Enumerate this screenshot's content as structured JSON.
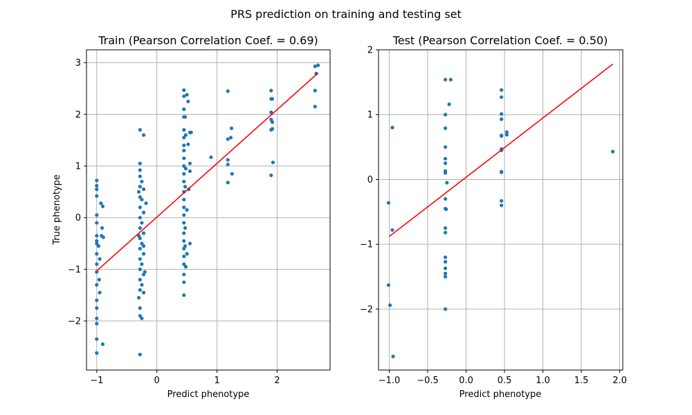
{
  "figure": {
    "title": "PRS prediction on training and testing set"
  },
  "colors": {
    "points": "#1f77b4",
    "fit_line": "#ff0000",
    "grid": "#b0b0b0"
  },
  "chart_data": [
    {
      "type": "scatter",
      "title": "Train (Pearson Correlation Coef. = 0.69)",
      "xlabel": "Predict phenotype",
      "ylabel": "True phenotype",
      "xlim": [
        -1.17,
        2.88
      ],
      "ylim": [
        -2.95,
        3.25
      ],
      "xticks": [
        -1,
        0,
        1,
        2
      ],
      "yticks": [
        -2,
        -1,
        0,
        1,
        2,
        3
      ],
      "xtick_labels": [
        "−1",
        "0",
        "1",
        "2"
      ],
      "ytick_labels": [
        "−2",
        "−1",
        "0",
        "1",
        "2",
        "3"
      ],
      "grid": true,
      "fit_line": {
        "x": [
          -1.0,
          2.68
        ],
        "y": [
          -1.03,
          2.8
        ]
      },
      "points": [
        {
          "x": -1.0,
          "y": 0.72
        },
        {
          "x": -1.0,
          "y": 0.62
        },
        {
          "x": -1.0,
          "y": 0.55
        },
        {
          "x": -1.0,
          "y": 0.42
        },
        {
          "x": -1.0,
          "y": 0.05
        },
        {
          "x": -1.0,
          "y": -0.1
        },
        {
          "x": -1.0,
          "y": -0.35
        },
        {
          "x": -1.0,
          "y": -0.45
        },
        {
          "x": -1.0,
          "y": -0.5
        },
        {
          "x": -1.0,
          "y": -0.7
        },
        {
          "x": -1.0,
          "y": -0.9
        },
        {
          "x": -1.0,
          "y": -1.05
        },
        {
          "x": -1.0,
          "y": -1.3
        },
        {
          "x": -1.0,
          "y": -1.6
        },
        {
          "x": -1.0,
          "y": -1.75
        },
        {
          "x": -1.0,
          "y": -1.95
        },
        {
          "x": -1.0,
          "y": -2.05
        },
        {
          "x": -1.0,
          "y": -2.35
        },
        {
          "x": -1.0,
          "y": -2.62
        },
        {
          "x": -0.97,
          "y": -0.55
        },
        {
          "x": -0.96,
          "y": -1.2
        },
        {
          "x": -0.95,
          "y": -1.45
        },
        {
          "x": -0.93,
          "y": 0.28
        },
        {
          "x": -0.92,
          "y": -0.35
        },
        {
          "x": -0.91,
          "y": -0.2
        },
        {
          "x": -0.9,
          "y": 0.22
        },
        {
          "x": -0.89,
          "y": -0.38
        },
        {
          "x": -0.9,
          "y": -2.45
        },
        {
          "x": -0.95,
          "y": -0.8
        },
        {
          "x": -0.28,
          "y": 1.7
        },
        {
          "x": -0.28,
          "y": 1.05
        },
        {
          "x": -0.28,
          "y": 0.92
        },
        {
          "x": -0.28,
          "y": 0.8
        },
        {
          "x": -0.28,
          "y": 0.6
        },
        {
          "x": -0.28,
          "y": 0.4
        },
        {
          "x": -0.28,
          "y": 0.2
        },
        {
          "x": -0.28,
          "y": 0.0
        },
        {
          "x": -0.28,
          "y": -0.2
        },
        {
          "x": -0.28,
          "y": -0.4
        },
        {
          "x": -0.28,
          "y": -0.6
        },
        {
          "x": -0.28,
          "y": -0.8
        },
        {
          "x": -0.28,
          "y": -1.0
        },
        {
          "x": -0.28,
          "y": -1.2
        },
        {
          "x": -0.28,
          "y": -1.4
        },
        {
          "x": -0.28,
          "y": -1.75
        },
        {
          "x": -0.28,
          "y": -1.9
        },
        {
          "x": -0.28,
          "y": -2.65
        },
        {
          "x": -0.25,
          "y": 0.7
        },
        {
          "x": -0.25,
          "y": 0.35
        },
        {
          "x": -0.25,
          "y": -0.1
        },
        {
          "x": -0.25,
          "y": -0.5
        },
        {
          "x": -0.25,
          "y": -0.9
        },
        {
          "x": -0.25,
          "y": -1.3
        },
        {
          "x": -0.25,
          "y": -1.95
        },
        {
          "x": -0.22,
          "y": 1.6
        },
        {
          "x": -0.22,
          "y": 0.55
        },
        {
          "x": -0.22,
          "y": 0.1
        },
        {
          "x": -0.22,
          "y": -0.3
        },
        {
          "x": -0.22,
          "y": -0.55
        },
        {
          "x": -0.22,
          "y": -0.7
        },
        {
          "x": -0.22,
          "y": -1.1
        },
        {
          "x": -0.22,
          "y": -1.45
        },
        {
          "x": -0.18,
          "y": 0.28
        },
        {
          "x": -0.2,
          "y": -1.05
        },
        {
          "x": -0.3,
          "y": 0.5
        },
        {
          "x": -0.3,
          "y": -0.35
        },
        {
          "x": -0.3,
          "y": -1.55
        },
        {
          "x": 0.45,
          "y": 2.47
        },
        {
          "x": 0.45,
          "y": 2.35
        },
        {
          "x": 0.45,
          "y": 2.1
        },
        {
          "x": 0.45,
          "y": 1.95
        },
        {
          "x": 0.45,
          "y": 1.7
        },
        {
          "x": 0.45,
          "y": 1.55
        },
        {
          "x": 0.45,
          "y": 1.4
        },
        {
          "x": 0.45,
          "y": 1.3
        },
        {
          "x": 0.45,
          "y": 1.15
        },
        {
          "x": 0.45,
          "y": 1.0
        },
        {
          "x": 0.45,
          "y": 0.85
        },
        {
          "x": 0.45,
          "y": 0.7
        },
        {
          "x": 0.45,
          "y": 0.5
        },
        {
          "x": 0.45,
          "y": 0.35
        },
        {
          "x": 0.45,
          "y": 0.2
        },
        {
          "x": 0.45,
          "y": 0.05
        },
        {
          "x": 0.45,
          "y": -0.1
        },
        {
          "x": 0.45,
          "y": -0.3
        },
        {
          "x": 0.45,
          "y": -0.45
        },
        {
          "x": 0.45,
          "y": -0.6
        },
        {
          "x": 0.45,
          "y": -0.75
        },
        {
          "x": 0.45,
          "y": -0.9
        },
        {
          "x": 0.45,
          "y": -1.1
        },
        {
          "x": 0.45,
          "y": -1.25
        },
        {
          "x": 0.45,
          "y": -1.5
        },
        {
          "x": 0.47,
          "y": 1.95
        },
        {
          "x": 0.47,
          "y": 0.6
        },
        {
          "x": 0.47,
          "y": -0.2
        },
        {
          "x": 0.47,
          "y": -0.55
        },
        {
          "x": 0.48,
          "y": 1.6
        },
        {
          "x": 0.48,
          "y": 0.95
        },
        {
          "x": 0.48,
          "y": -0.95
        },
        {
          "x": 0.5,
          "y": 2.38
        },
        {
          "x": 0.52,
          "y": 2.25
        },
        {
          "x": 0.52,
          "y": 1.42
        },
        {
          "x": 0.53,
          "y": 0.55
        },
        {
          "x": 0.55,
          "y": 1.65
        },
        {
          "x": 0.55,
          "y": 0.9
        },
        {
          "x": 0.55,
          "y": -0.5
        },
        {
          "x": 0.57,
          "y": 1.65
        },
        {
          "x": 0.55,
          "y": 1.05
        },
        {
          "x": 0.5,
          "y": 0.15
        },
        {
          "x": 0.5,
          "y": -0.7
        },
        {
          "x": 0.9,
          "y": 1.17
        },
        {
          "x": 1.18,
          "y": 2.45
        },
        {
          "x": 1.18,
          "y": 1.52
        },
        {
          "x": 1.18,
          "y": 1.12
        },
        {
          "x": 1.18,
          "y": 1.03
        },
        {
          "x": 1.18,
          "y": 0.68
        },
        {
          "x": 1.23,
          "y": 1.55
        },
        {
          "x": 1.24,
          "y": 1.73
        },
        {
          "x": 1.25,
          "y": 0.85
        },
        {
          "x": 1.9,
          "y": 2.46
        },
        {
          "x": 1.9,
          "y": 2.3
        },
        {
          "x": 1.9,
          "y": 2.04
        },
        {
          "x": 1.9,
          "y": 1.9
        },
        {
          "x": 1.9,
          "y": 1.7
        },
        {
          "x": 1.9,
          "y": 0.82
        },
        {
          "x": 1.92,
          "y": 2.3
        },
        {
          "x": 1.92,
          "y": 1.85
        },
        {
          "x": 1.92,
          "y": 1.72
        },
        {
          "x": 1.93,
          "y": 1.07
        },
        {
          "x": 2.63,
          "y": 2.93
        },
        {
          "x": 2.65,
          "y": 2.79
        },
        {
          "x": 2.63,
          "y": 2.46
        },
        {
          "x": 2.63,
          "y": 2.15
        },
        {
          "x": 2.68,
          "y": 2.95
        }
      ]
    },
    {
      "type": "scatter",
      "title": "Test (Pearson Correlation Coef. = 0.50)",
      "xlabel": "Predict phenotype",
      "ylabel": "",
      "xlim": [
        -1.14,
        2.04
      ],
      "ylim": [
        -2.94,
        2.0
      ],
      "xticks": [
        -1.0,
        -0.5,
        0.0,
        0.5,
        1.0,
        1.5,
        2.0
      ],
      "yticks": [
        -2,
        -1,
        0,
        1,
        2
      ],
      "xtick_labels": [
        "−1.0",
        "−0.5",
        "0.0",
        "0.5",
        "1.0",
        "1.5",
        "2.0"
      ],
      "ytick_labels": [
        "−2",
        "−1",
        "0",
        "1",
        "2"
      ],
      "grid": true,
      "fit_line": {
        "x": [
          -1.0,
          1.91
        ],
        "y": [
          -0.88,
          1.78
        ]
      },
      "points": [
        {
          "x": -1.01,
          "y": -0.36
        },
        {
          "x": -1.01,
          "y": -1.63
        },
        {
          "x": -0.99,
          "y": -1.94
        },
        {
          "x": -0.96,
          "y": 0.8
        },
        {
          "x": -0.96,
          "y": -0.78
        },
        {
          "x": -0.95,
          "y": -2.73
        },
        {
          "x": -0.27,
          "y": 1.54
        },
        {
          "x": -0.27,
          "y": 1.0
        },
        {
          "x": -0.27,
          "y": 0.79
        },
        {
          "x": -0.27,
          "y": 0.5
        },
        {
          "x": -0.27,
          "y": 0.32
        },
        {
          "x": -0.27,
          "y": 0.25
        },
        {
          "x": -0.27,
          "y": 0.13
        },
        {
          "x": -0.27,
          "y": 0.1
        },
        {
          "x": -0.27,
          "y": -0.3
        },
        {
          "x": -0.27,
          "y": -0.45
        },
        {
          "x": -0.27,
          "y": -0.75
        },
        {
          "x": -0.27,
          "y": -0.82
        },
        {
          "x": -0.27,
          "y": -1.2
        },
        {
          "x": -0.27,
          "y": -1.27
        },
        {
          "x": -0.27,
          "y": -1.37
        },
        {
          "x": -0.27,
          "y": -1.45
        },
        {
          "x": -0.27,
          "y": -1.5
        },
        {
          "x": -0.27,
          "y": -2.0
        },
        {
          "x": -0.25,
          "y": -0.05
        },
        {
          "x": -0.26,
          "y": -0.46
        },
        {
          "x": -0.22,
          "y": 1.16
        },
        {
          "x": -0.2,
          "y": 1.54
        },
        {
          "x": 0.46,
          "y": 1.38
        },
        {
          "x": 0.46,
          "y": 1.27
        },
        {
          "x": 0.46,
          "y": 1.01
        },
        {
          "x": 0.46,
          "y": 0.93
        },
        {
          "x": 0.46,
          "y": 0.68
        },
        {
          "x": 0.46,
          "y": 0.67
        },
        {
          "x": 0.46,
          "y": 0.47
        },
        {
          "x": 0.46,
          "y": 0.45
        },
        {
          "x": 0.46,
          "y": 0.12
        },
        {
          "x": 0.46,
          "y": 0.11
        },
        {
          "x": 0.46,
          "y": -0.33
        },
        {
          "x": 0.46,
          "y": -0.4
        },
        {
          "x": 0.53,
          "y": 0.73
        },
        {
          "x": 0.53,
          "y": 0.69
        },
        {
          "x": 1.91,
          "y": 0.43
        }
      ]
    }
  ]
}
